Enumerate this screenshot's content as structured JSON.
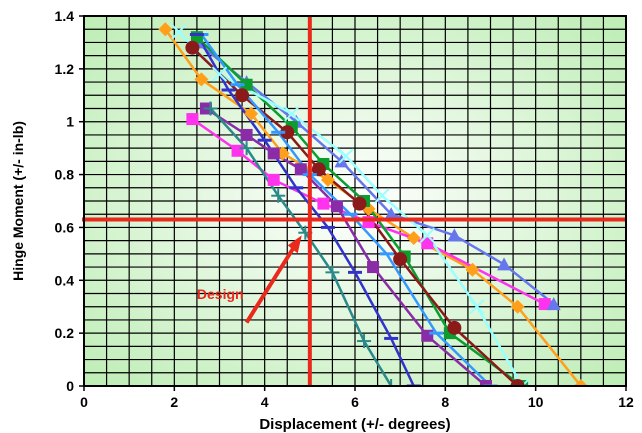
{
  "chart_data": {
    "type": "line",
    "title": "",
    "xlabel": "Displacement (+/- degrees)",
    "ylabel": "Hinge Moment (+/- in-lb)",
    "xlim": [
      0,
      12
    ],
    "ylim": [
      0,
      1.4
    ],
    "x_ticks": [
      "0",
      "2",
      "4",
      "6",
      "8",
      "10",
      "12"
    ],
    "y_ticks": [
      "0",
      "0.2",
      "0.4",
      "0.6",
      "0.8",
      "1",
      "1.2",
      "1.4"
    ],
    "grid": true,
    "legend": "none",
    "colors": {
      "plot_bg_edge": "#b9ecb0",
      "plot_bg_center": "#ffffff",
      "grid": "#000000",
      "design_line": "#e8291c",
      "design_text": "#e8291c"
    },
    "design_point": {
      "x": 5,
      "y": 0.63
    },
    "annotation": {
      "text": "Design",
      "x": 2.5,
      "y": 0.33
    },
    "series": [
      {
        "color": "#ff9f1a",
        "marker": "diamond",
        "x": [
          1.8,
          2.6,
          3.7,
          4.4,
          5.4,
          6.3,
          7.3,
          8.6,
          9.6,
          11
        ],
        "y": [
          1.35,
          1.16,
          1.03,
          0.88,
          0.78,
          0.67,
          0.56,
          0.44,
          0.3,
          0
        ]
      },
      {
        "color": "#ff33ee",
        "marker": "square",
        "x": [
          2.4,
          3.4,
          4.2,
          5.3,
          6.3,
          7.6,
          10.2
        ],
        "y": [
          1.01,
          0.89,
          0.78,
          0.69,
          0.62,
          0.54,
          0.31
        ]
      },
      {
        "color": "#6677ee",
        "marker": "triangle",
        "x": [
          2.5,
          3.6,
          4.7,
          5.7,
          6.8,
          8.2,
          9.3,
          10.4
        ],
        "y": [
          1.3,
          1.15,
          1.0,
          0.85,
          0.65,
          0.57,
          0.46,
          0.31
        ]
      },
      {
        "color": "#0b9e2f",
        "marker": "square",
        "x": [
          2.5,
          3.6,
          4.6,
          5.3,
          6.2,
          7.1,
          8.1,
          9.7
        ],
        "y": [
          1.32,
          1.14,
          0.98,
          0.84,
          0.7,
          0.49,
          0.2,
          0
        ]
      },
      {
        "color": "#99ffff",
        "marker": "x",
        "x": [
          2.1,
          3.0,
          4.6,
          5.8,
          6.6,
          7.6,
          8.7,
          9.7
        ],
        "y": [
          1.34,
          1.18,
          1.03,
          0.87,
          0.72,
          0.57,
          0.3,
          0
        ]
      },
      {
        "color": "#8b1a1a",
        "marker": "circle",
        "x": [
          2.4,
          3.5,
          4.5,
          5.2,
          6.1,
          7.0,
          8.2,
          9.6
        ],
        "y": [
          1.28,
          1.1,
          0.96,
          0.82,
          0.69,
          0.48,
          0.22,
          0
        ]
      },
      {
        "color": "#8a2ba8",
        "marker": "square",
        "x": [
          2.7,
          3.6,
          4.2,
          4.8,
          5.6,
          6.4,
          7.6,
          8.9
        ],
        "y": [
          1.05,
          0.95,
          0.88,
          0.82,
          0.68,
          0.45,
          0.19,
          0
        ]
      },
      {
        "color": "#3399ff",
        "marker": "dash",
        "x": [
          2.6,
          3.4,
          4.3,
          5.0,
          5.9,
          6.7,
          7.8,
          9.0
        ],
        "y": [
          1.33,
          1.14,
          0.96,
          0.8,
          0.65,
          0.5,
          0.2,
          0
        ]
      },
      {
        "color": "#3333cc",
        "marker": "dash",
        "x": [
          2.5,
          3.2,
          4.0,
          4.7,
          5.4,
          6.0,
          6.8,
          7.3
        ],
        "y": [
          1.33,
          1.12,
          0.93,
          0.75,
          0.6,
          0.43,
          0.18,
          0
        ]
      },
      {
        "color": "#2a8a8a",
        "marker": "plus",
        "x": [
          2.8,
          3.6,
          4.3,
          4.9,
          5.5,
          6.2,
          6.8
        ],
        "y": [
          1.05,
          0.9,
          0.72,
          0.58,
          0.43,
          0.17,
          0
        ]
      }
    ]
  }
}
